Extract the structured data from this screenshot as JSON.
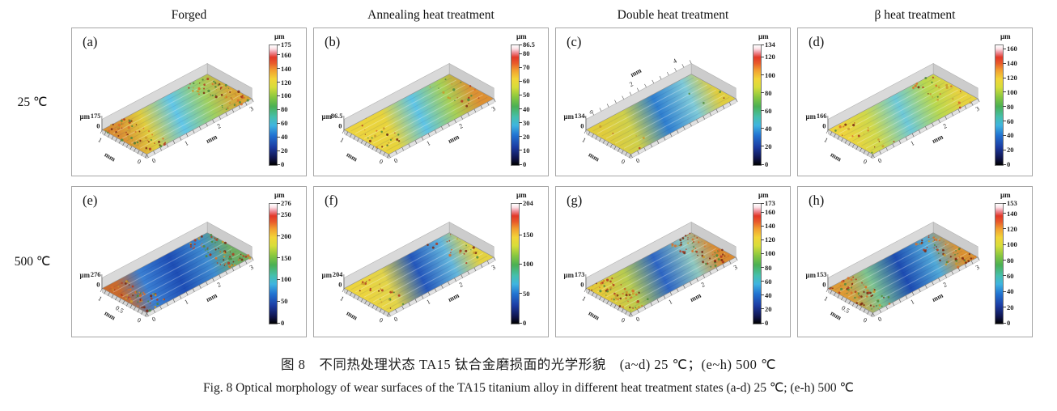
{
  "figure": {
    "columns": [
      "Forged",
      "Annealing heat treatment",
      "Double heat treatment",
      "β heat treatment"
    ],
    "rows": [
      {
        "label": "25 ℃"
      },
      {
        "label": "500 ℃"
      }
    ],
    "caption_cn": "图 8　不同热处理状态 TA15 钛合金磨损面的光学形貌　(a~d) 25 ℃；(e~h) 500 ℃",
    "caption_en": "Fig. 8  Optical morphology of wear surfaces of the TA15 titanium alloy in different heat treatment states  (a-d) 25 ℃; (e-h) 500 ℃"
  },
  "units": {
    "z": "μm",
    "xy": "mm"
  },
  "panels": [
    {
      "id": "a",
      "row": 0,
      "letter": "(a)",
      "z_max": 175,
      "z_max_label": "175",
      "colorbar_ticks": [
        "175",
        "160",
        "140",
        "120",
        "100",
        "80",
        "60",
        "40",
        "20",
        "0"
      ],
      "long_ticks": [
        "1",
        "2",
        "3"
      ],
      "short_ticks": [
        "1",
        "0"
      ],
      "variant": "standard",
      "speckle": "heavy",
      "surface": [
        "#d98f33",
        "#e0cd3e",
        "#62c6e8",
        "#a0d060",
        "#d9a636"
      ]
    },
    {
      "id": "b",
      "row": 0,
      "letter": "(b)",
      "z_max": 86.5,
      "z_max_label": "86.5",
      "colorbar_ticks": [
        "86.5",
        "80",
        "70",
        "60",
        "50",
        "40",
        "30",
        "20",
        "10",
        "0"
      ],
      "long_ticks": [
        "1",
        "2",
        "3"
      ],
      "short_ticks": [
        "1",
        "0"
      ],
      "variant": "standard",
      "speckle": "light",
      "surface": [
        "#ecd43e",
        "#e8d43c",
        "#5fc4e6",
        "#a8d055",
        "#dd9032"
      ]
    },
    {
      "id": "c",
      "row": 0,
      "letter": "(c)",
      "z_max": 134,
      "z_max_label": "134",
      "colorbar_ticks": [
        "134",
        "120",
        "100",
        "80",
        "60",
        "40",
        "20",
        "0"
      ],
      "long_ticks": [
        "2",
        "4"
      ],
      "short_ticks": [
        "1",
        "0"
      ],
      "variant": "top-axis",
      "speckle": "none",
      "surface": [
        "#e0cc3c",
        "#cfd04a",
        "#2f7fd0",
        "#7fcad8",
        "#dfcd40"
      ]
    },
    {
      "id": "d",
      "row": 0,
      "letter": "(d)",
      "z_max": 166,
      "z_max_label": "166",
      "colorbar_ticks": [
        "160",
        "140",
        "120",
        "100",
        "80",
        "60",
        "40",
        "20",
        "0"
      ],
      "long_ticks": [
        "1",
        "2",
        "3"
      ],
      "short_ticks": [
        "1",
        "0"
      ],
      "variant": "standard",
      "speckle": "light",
      "surface": [
        "#ecd43e",
        "#cfd84a",
        "#6fc9d8",
        "#b9d84e",
        "#e6d240"
      ]
    },
    {
      "id": "e",
      "row": 1,
      "letter": "(e)",
      "z_max": 276,
      "z_max_label": "276",
      "colorbar_ticks": [
        "276",
        "250",
        "200",
        "150",
        "100",
        "50",
        "0"
      ],
      "long_ticks": [
        "1",
        "2",
        "3"
      ],
      "short_ticks": [
        "1",
        "0.5",
        "0"
      ],
      "variant": "standard",
      "speckle": "heavy",
      "surface": [
        "#c96a2d",
        "#3a7fd2",
        "#1e4eb5",
        "#3f8cd0",
        "#6fae62"
      ]
    },
    {
      "id": "f",
      "row": 1,
      "letter": "(f)",
      "z_max": 204,
      "z_max_label": "204",
      "colorbar_ticks": [
        "204",
        "150",
        "100",
        "50",
        "0"
      ],
      "long_ticks": [
        "1",
        "2",
        "3"
      ],
      "short_ticks": [
        "1",
        "0"
      ],
      "variant": "standard",
      "speckle": "light",
      "surface": [
        "#ecd43e",
        "#e2d44a",
        "#2558bc",
        "#64b6dc",
        "#e4d242"
      ]
    },
    {
      "id": "g",
      "row": 1,
      "letter": "(g)",
      "z_max": 173,
      "z_max_label": "173",
      "colorbar_ticks": [
        "173",
        "160",
        "140",
        "120",
        "100",
        "80",
        "60",
        "40",
        "20",
        "0"
      ],
      "long_ticks": [
        "1",
        "2",
        "3"
      ],
      "short_ticks": [
        "1",
        "0"
      ],
      "variant": "standard",
      "speckle": "heavy",
      "surface": [
        "#e3c93a",
        "#b8cc50",
        "#2e66c4",
        "#8fc8c0",
        "#d98a30"
      ]
    },
    {
      "id": "h",
      "row": 1,
      "letter": "(h)",
      "z_max": 153,
      "z_max_label": "153",
      "colorbar_ticks": [
        "153",
        "140",
        "120",
        "100",
        "80",
        "60",
        "40",
        "20",
        "0"
      ],
      "long_ticks": [
        "1",
        "2",
        "3"
      ],
      "short_ticks": [
        "1",
        "0.5",
        "0"
      ],
      "variant": "standard",
      "speckle": "heavy",
      "surface": [
        "#dd9b35",
        "#7ec48f",
        "#1d4cb2",
        "#52aad8",
        "#d99232"
      ]
    }
  ],
  "chart_data": [
    {
      "type": "heatmap",
      "panel": "a",
      "column": "Forged",
      "row": "25 ℃",
      "z_unit": "μm",
      "z_min": 0,
      "z_max": 175,
      "colorbar_ticks": [
        175,
        160,
        140,
        120,
        100,
        80,
        60,
        40,
        20,
        0
      ],
      "x_label": "mm",
      "x_ticks": [
        0,
        1,
        2,
        3
      ],
      "y_label": "mm",
      "y_ticks": [
        0,
        1
      ],
      "surface_pattern": "orange-red speckled ends with light-blue central wear groove"
    },
    {
      "type": "heatmap",
      "panel": "b",
      "column": "Annealing heat treatment",
      "row": "25 ℃",
      "z_unit": "μm",
      "z_min": 0,
      "z_max": 86.5,
      "colorbar_ticks": [
        86.5,
        80,
        70,
        60,
        50,
        40,
        30,
        20,
        10,
        0
      ],
      "x_label": "mm",
      "x_ticks": [
        0,
        1,
        2,
        3
      ],
      "y_label": "mm",
      "y_ticks": [
        0,
        1
      ],
      "surface_pattern": "yellow plateau with cyan central groove and orange debris at far end"
    },
    {
      "type": "heatmap",
      "panel": "c",
      "column": "Double heat treatment",
      "row": "25 ℃",
      "z_unit": "μm",
      "z_min": 0,
      "z_max": 134,
      "colorbar_ticks": [
        134,
        120,
        100,
        80,
        60,
        40,
        20,
        0
      ],
      "x_label": "mm",
      "x_ticks": [
        0,
        2,
        4
      ],
      "y_label": "mm",
      "y_ticks": [
        0,
        1
      ],
      "surface_pattern": "smooth yellow ends with deep-blue central groove, long narrow track"
    },
    {
      "type": "heatmap",
      "panel": "d",
      "column": "β heat treatment",
      "row": "25 ℃",
      "z_unit": "μm",
      "z_min": 0,
      "z_max": 166,
      "colorbar_ticks": [
        160,
        140,
        120,
        100,
        80,
        60,
        40,
        20,
        0
      ],
      "x_label": "mm",
      "x_ticks": [
        0,
        1,
        2,
        3
      ],
      "y_label": "mm",
      "y_ticks": [
        0,
        1
      ],
      "surface_pattern": "yellow plateau with light cyan-green shallow groove and sparse debris"
    },
    {
      "type": "heatmap",
      "panel": "e",
      "column": "Forged",
      "row": "500 ℃",
      "z_unit": "μm",
      "z_min": 0,
      "z_max": 276,
      "colorbar_ticks": [
        276,
        250,
        200,
        150,
        100,
        50,
        0
      ],
      "x_label": "mm",
      "x_ticks": [
        0,
        1,
        2,
        3
      ],
      "y_label": "mm",
      "y_ticks": [
        0,
        0.5,
        1
      ],
      "surface_pattern": "deep blue wide groove with heavy orange-red speckled ends"
    },
    {
      "type": "heatmap",
      "panel": "f",
      "column": "Annealing heat treatment",
      "row": "500 ℃",
      "z_unit": "μm",
      "z_min": 0,
      "z_max": 204,
      "colorbar_ticks": [
        204,
        150,
        100,
        50,
        0
      ],
      "x_label": "mm",
      "x_ticks": [
        0,
        1,
        2,
        3
      ],
      "y_label": "mm",
      "y_ticks": [
        0,
        1
      ],
      "surface_pattern": "yellow plateau with deep blue central groove and scattered red debris"
    },
    {
      "type": "heatmap",
      "panel": "g",
      "column": "Double heat treatment",
      "row": "500 ℃",
      "z_unit": "μm",
      "z_min": 0,
      "z_max": 173,
      "colorbar_ticks": [
        173,
        160,
        140,
        120,
        100,
        80,
        60,
        40,
        20,
        0
      ],
      "x_label": "mm",
      "x_ticks": [
        0,
        1,
        2,
        3
      ],
      "y_label": "mm",
      "y_ticks": [
        0,
        1
      ],
      "surface_pattern": "yellow speckled near end, blue groove, orange far end with spikes"
    },
    {
      "type": "heatmap",
      "panel": "h",
      "column": "β heat treatment",
      "row": "500 ℃",
      "z_unit": "μm",
      "z_min": 0,
      "z_max": 153,
      "colorbar_ticks": [
        153,
        140,
        120,
        100,
        80,
        60,
        40,
        20,
        0
      ],
      "x_label": "mm",
      "x_ticks": [
        0,
        1,
        2,
        3
      ],
      "y_label": "mm",
      "y_ticks": [
        0,
        0.5,
        1
      ],
      "surface_pattern": "orange speckled ends with dark blue central groove"
    }
  ]
}
